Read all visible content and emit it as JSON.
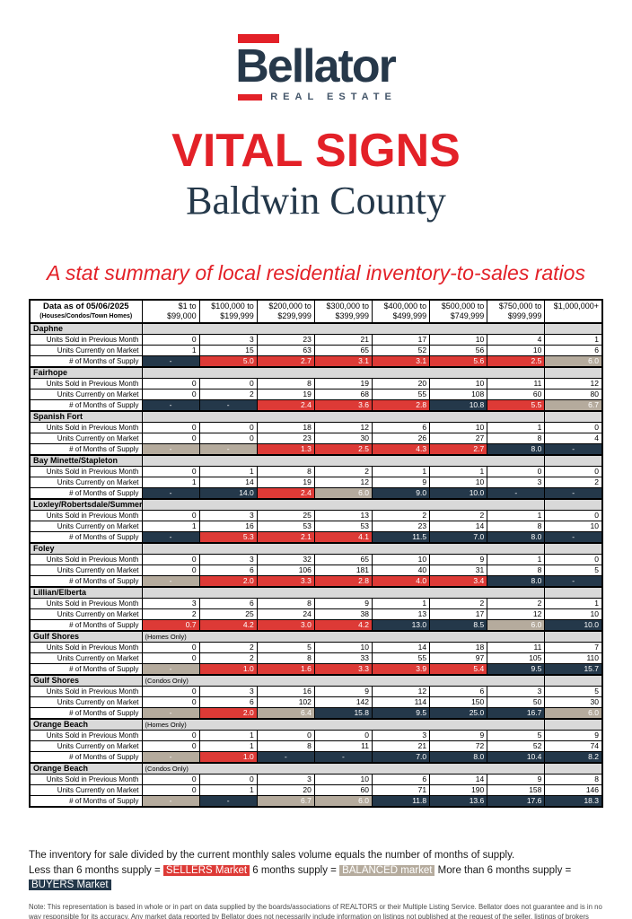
{
  "colors": {
    "red": "#dd3a36",
    "navy": "#24384a",
    "tan": "#b5ab9d",
    "section_gray": "#d9d9d9",
    "title_red": "#e32128"
  },
  "logo": {
    "name": "Bellator",
    "tagline": "REAL ESTATE"
  },
  "header": {
    "title": "VITAL SIGNS",
    "subtitle": "Baldwin County",
    "description": "A stat summary of local residential inventory-to-sales ratios"
  },
  "table": {
    "corner_title": "Data as of 05/06/2025",
    "corner_subtitle": "(Houses/Condos/Town Homes)",
    "columns": [
      [
        "$1 to",
        "$99,000"
      ],
      [
        "$100,000 to",
        "$199,999"
      ],
      [
        "$200,000 to",
        "$299,999"
      ],
      [
        "$300,000 to",
        "$399,999"
      ],
      [
        "$400,000 to",
        "$499,999"
      ],
      [
        "$500,000 to",
        "$749,999"
      ],
      [
        "$750,000 to",
        "$999,999"
      ],
      [
        "$1,000,000+",
        ""
      ]
    ],
    "row_labels": {
      "sold": "Units Sold in Previous Month",
      "market": "Units Currently on Market",
      "supply": "# of Months of Supply"
    },
    "sections": [
      {
        "name": "Daphne",
        "note": "",
        "sold": [
          0,
          3,
          23,
          21,
          17,
          10,
          4,
          1
        ],
        "market": [
          1,
          15,
          63,
          65,
          52,
          56,
          10,
          6
        ],
        "supply": [
          "-",
          "5.0",
          "2.7",
          "3.1",
          "3.1",
          "5.6",
          "2.5",
          "6.0"
        ],
        "supply_colors": [
          "navy",
          "red",
          "red",
          "red",
          "red",
          "red",
          "red",
          "tan"
        ]
      },
      {
        "name": "Fairhope",
        "note": "",
        "sold": [
          0,
          0,
          8,
          19,
          20,
          10,
          11,
          12
        ],
        "market": [
          0,
          2,
          19,
          68,
          55,
          108,
          60,
          80
        ],
        "supply": [
          "-",
          "-",
          "2.4",
          "3.6",
          "2.8",
          "10.8",
          "5.5",
          "6.7"
        ],
        "supply_colors": [
          "navy",
          "navy",
          "red",
          "red",
          "red",
          "navy",
          "red",
          "tan"
        ]
      },
      {
        "name": "Spanish Fort",
        "note": "",
        "sold": [
          0,
          0,
          18,
          12,
          6,
          10,
          1,
          0
        ],
        "market": [
          0,
          0,
          23,
          30,
          26,
          27,
          8,
          4
        ],
        "supply": [
          "-",
          "-",
          "1.3",
          "2.5",
          "4.3",
          "2.7",
          "8.0",
          "-"
        ],
        "supply_colors": [
          "tan",
          "tan",
          "red",
          "red",
          "red",
          "red",
          "navy",
          "navy"
        ]
      },
      {
        "name": "Bay Minette/Stapleton",
        "note": "",
        "sold": [
          0,
          1,
          8,
          2,
          1,
          1,
          0,
          0
        ],
        "market": [
          1,
          14,
          19,
          12,
          9,
          10,
          3,
          2
        ],
        "supply": [
          "-",
          "14.0",
          "2.4",
          "6.0",
          "9.0",
          "10.0",
          "-",
          "-"
        ],
        "supply_colors": [
          "navy",
          "navy",
          "red",
          "tan",
          "navy",
          "navy",
          "navy",
          "navy"
        ]
      },
      {
        "name": "Loxley/Robertsdale/Summerdale",
        "note": "",
        "sold": [
          0,
          3,
          25,
          13,
          2,
          2,
          1,
          0
        ],
        "market": [
          1,
          16,
          53,
          53,
          23,
          14,
          8,
          10
        ],
        "supply": [
          "-",
          "5.3",
          "2.1",
          "4.1",
          "11.5",
          "7.0",
          "8.0",
          "-"
        ],
        "supply_colors": [
          "navy",
          "red",
          "red",
          "red",
          "navy",
          "navy",
          "navy",
          "navy"
        ]
      },
      {
        "name": "Foley",
        "note": "",
        "sold": [
          0,
          3,
          32,
          65,
          10,
          9,
          1,
          0
        ],
        "market": [
          0,
          6,
          106,
          181,
          40,
          31,
          8,
          5
        ],
        "supply": [
          "-",
          "2.0",
          "3.3",
          "2.8",
          "4.0",
          "3.4",
          "8.0",
          "-"
        ],
        "supply_colors": [
          "tan",
          "red",
          "red",
          "red",
          "red",
          "red",
          "navy",
          "navy"
        ]
      },
      {
        "name": "Lillian/Elberta",
        "note": "",
        "sold": [
          3,
          6,
          8,
          9,
          1,
          2,
          2,
          1
        ],
        "market": [
          2,
          25,
          24,
          38,
          13,
          17,
          12,
          10
        ],
        "supply": [
          "0.7",
          "4.2",
          "3.0",
          "4.2",
          "13.0",
          "8.5",
          "6.0",
          "10.0"
        ],
        "supply_colors": [
          "red",
          "red",
          "red",
          "red",
          "navy",
          "navy",
          "tan",
          "navy"
        ]
      },
      {
        "name": "Gulf Shores",
        "note": "(Homes Only)",
        "sold": [
          0,
          2,
          5,
          10,
          14,
          18,
          11,
          7
        ],
        "market": [
          0,
          2,
          8,
          33,
          55,
          97,
          105,
          110
        ],
        "supply": [
          "-",
          "1.0",
          "1.6",
          "3.3",
          "3.9",
          "5.4",
          "9.5",
          "15.7"
        ],
        "supply_colors": [
          "tan",
          "red",
          "red",
          "red",
          "red",
          "red",
          "navy",
          "navy"
        ]
      },
      {
        "name": "Gulf Shores",
        "note": "(Condos Only)",
        "sold": [
          0,
          3,
          16,
          9,
          12,
          6,
          3,
          5
        ],
        "market": [
          0,
          6,
          102,
          142,
          114,
          150,
          50,
          30
        ],
        "supply": [
          "-",
          "2.0",
          "6.4",
          "15.8",
          "9.5",
          "25.0",
          "16.7",
          "6.0"
        ],
        "supply_colors": [
          "tan",
          "red",
          "tan",
          "navy",
          "navy",
          "navy",
          "navy",
          "tan"
        ]
      },
      {
        "name": "Orange Beach",
        "note": "(Homes Only)",
        "sold": [
          0,
          1,
          0,
          0,
          3,
          9,
          5,
          9
        ],
        "market": [
          0,
          1,
          8,
          11,
          21,
          72,
          52,
          74
        ],
        "supply": [
          "-",
          "1.0",
          "-",
          "-",
          "7.0",
          "8.0",
          "10.4",
          "8.2"
        ],
        "supply_colors": [
          "tan",
          "red",
          "navy",
          "navy",
          "navy",
          "navy",
          "navy",
          "navy"
        ]
      },
      {
        "name": "Orange Beach",
        "note": "(Condos Only)",
        "sold": [
          0,
          0,
          3,
          10,
          6,
          14,
          9,
          8
        ],
        "market": [
          0,
          1,
          20,
          60,
          71,
          190,
          158,
          146
        ],
        "supply": [
          "-",
          "-",
          "6.7",
          "6.0",
          "11.8",
          "13.6",
          "17.6",
          "18.3"
        ],
        "supply_colors": [
          "tan",
          "navy",
          "tan",
          "tan",
          "navy",
          "navy",
          "navy",
          "navy"
        ]
      }
    ]
  },
  "footer": {
    "supply_note": "The inventory for sale divided by the current monthly sales volume equals the number of months of supply.",
    "legend": {
      "part1": "Less than 6 months supply = ",
      "sellers": "SELLERS Market",
      "part2": " 6 months supply = ",
      "balanced": "BALANCED market",
      "part3": "  More than 6 months supply = ",
      "buyers": "BUYERS Market"
    },
    "disclaimer": "Note: This representation is based in whole or in part on data supplied by the boards/associations of REALTORS or their Multiple Listing Service. Bellator does not guarantee and is in no way responsible for its accuracy. Any market data reported by Bellator does not necessarily include information on listings not published at the request of the seller, listings of brokers who are not members of a local board/association or MLS, unlisted properties, rental properties, etc. The statistics included in this report reflect the residential sales of houses, condominiums, and town homes."
  }
}
